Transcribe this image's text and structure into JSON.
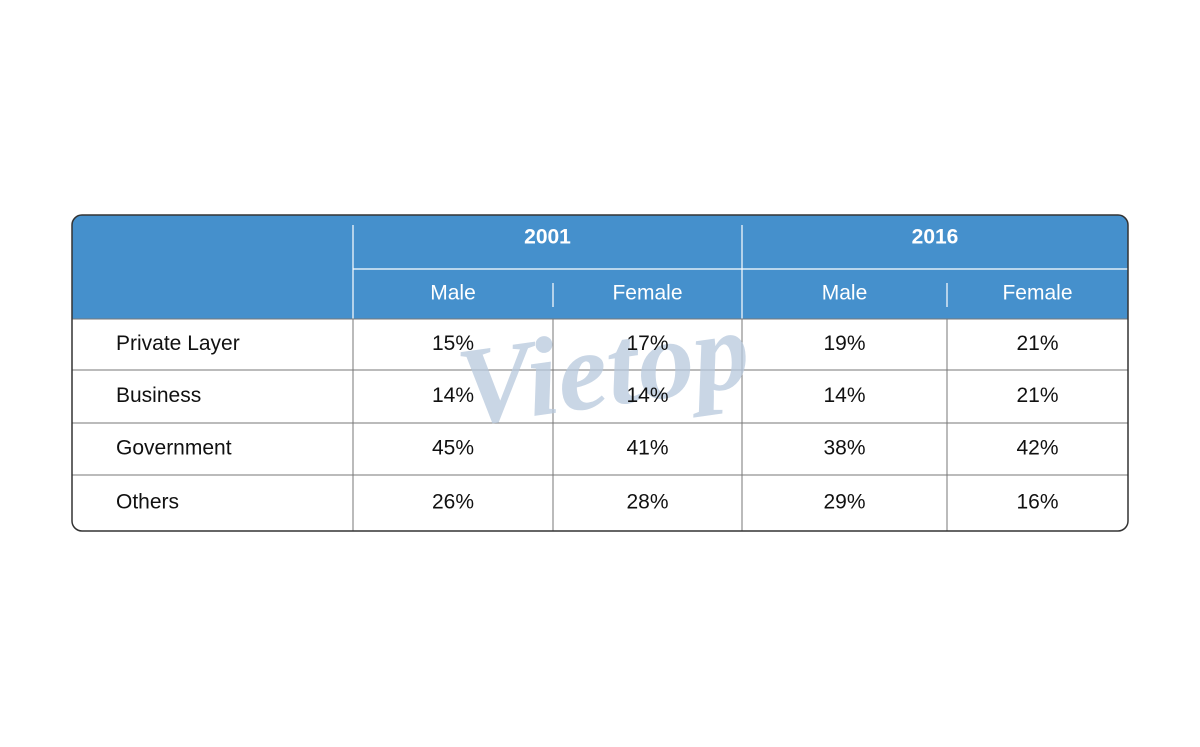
{
  "table": {
    "groups": [
      "2001",
      "2016"
    ],
    "subheaders": [
      "Male",
      "Female",
      "Male",
      "Female"
    ],
    "rows": [
      [
        "Private Layer",
        "15%",
        "17%",
        "19%",
        "21%"
      ],
      [
        "Business",
        "14%",
        "14%",
        "14%",
        "21%"
      ],
      [
        "Government",
        "45%",
        "41%",
        "38%",
        "42%"
      ],
      [
        "Others",
        "26%",
        "28%",
        "29%",
        "16%"
      ]
    ]
  },
  "watermark": "Vietop"
}
